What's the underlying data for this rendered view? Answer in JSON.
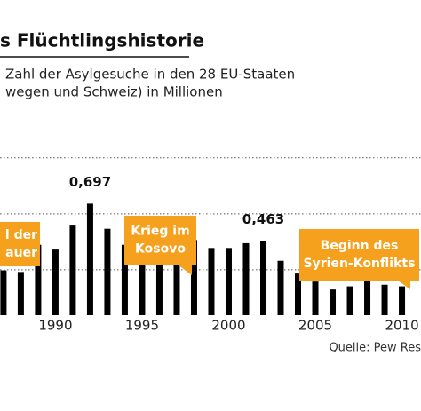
{
  "chart_data": {
    "type": "bar",
    "title": "s Flüchtlingshistorie",
    "subtitle": [
      "Zahl der Asylgesuche in den 28 EU-Staaten",
      "wegen und Schweiz) in Millionen"
    ],
    "x": [
      1987,
      1988,
      1989,
      1990,
      1991,
      1992,
      1993,
      1994,
      1995,
      1996,
      1997,
      1998,
      1999,
      2000,
      2001,
      2002,
      2003,
      2004,
      2005,
      2006,
      2007,
      2008,
      2009,
      2010
    ],
    "values": [
      0.28,
      0.27,
      0.44,
      0.41,
      0.56,
      0.697,
      0.54,
      0.44,
      0.39,
      0.36,
      0.38,
      0.47,
      0.42,
      0.42,
      0.45,
      0.463,
      0.34,
      0.26,
      0.21,
      0.16,
      0.18,
      0.26,
      0.19,
      0.18
    ],
    "value_labels": [
      null,
      null,
      null,
      null,
      null,
      "0,697",
      null,
      null,
      null,
      null,
      null,
      null,
      null,
      null,
      null,
      "0,463",
      null,
      null,
      null,
      null,
      null,
      null,
      null,
      null
    ],
    "color": "#000000",
    "xlim": [
      1986.8,
      2011.1
    ],
    "xticks": [
      1990,
      1995,
      2000,
      2005,
      2010
    ],
    "ylim": [
      0,
      1.06
    ],
    "yticks": [
      0.35,
      0.7,
      1.05
    ],
    "grid": true,
    "annotations": [
      {
        "lines": [
          "l der",
          "auer"
        ]
      },
      {
        "lines": [
          "Krieg im",
          "Kosovo"
        ]
      },
      {
        "lines": [
          "Beginn des",
          "Syrien-Konflikts"
        ]
      }
    ],
    "annotation_color": "#f5a11d",
    "source": "Quelle: Pew Res"
  }
}
